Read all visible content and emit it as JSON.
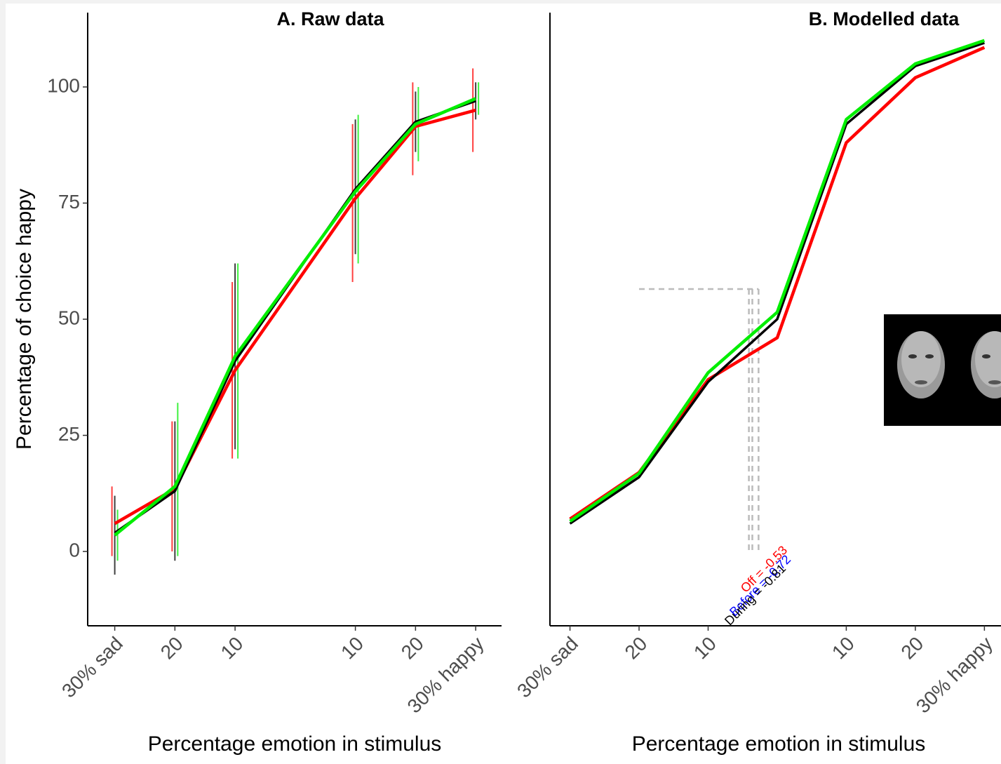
{
  "chart_data": [
    {
      "type": "line",
      "title": "A. Raw data",
      "x_label": "Percentage emotion in stimulus",
      "y_label": "Percentage of choice happy",
      "x": [
        -30,
        -20,
        -10,
        10,
        20,
        30
      ],
      "xlim": [
        -34.5,
        34.3
      ],
      "xticks": [
        {
          "value": -30,
          "label": "30% sad"
        },
        {
          "value": -20,
          "label": "20"
        },
        {
          "value": -10,
          "label": "10"
        },
        {
          "value": 10,
          "label": "10"
        },
        {
          "value": 20,
          "label": "20"
        },
        {
          "value": 30,
          "label": "30% happy"
        }
      ],
      "ylim": [
        -16,
        116
      ],
      "yticks": [
        0,
        25,
        50,
        75,
        100
      ],
      "series": [
        {
          "color": "#ff0000",
          "values": [
            6,
            13.5,
            39,
            76,
            91.5,
            95
          ],
          "lower": [
            -1,
            0,
            20,
            58,
            81,
            86
          ],
          "upper": [
            14,
            28,
            58,
            92,
            101,
            104
          ]
        },
        {
          "color": "#000000",
          "values": [
            4,
            13,
            41,
            78,
            92.5,
            97
          ],
          "lower": [
            -5,
            -2,
            22,
            64,
            86,
            93
          ],
          "upper": [
            12,
            28,
            62,
            93,
            99,
            101
          ]
        },
        {
          "color": "#00ee00",
          "values": [
            3.5,
            14,
            42,
            77.5,
            92,
            97.5
          ],
          "lower": [
            -2,
            -1,
            20,
            62,
            84,
            94
          ],
          "upper": [
            9,
            32,
            62,
            94,
            100,
            101
          ]
        }
      ]
    },
    {
      "type": "line",
      "title": "B. Modelled data",
      "x_label": "Percentage emotion in stimulus",
      "x": [
        -30,
        -20,
        -10,
        0,
        10,
        20,
        30
      ],
      "xlim": [
        -32.9,
        32.4
      ],
      "xticks": [
        {
          "value": -30,
          "label": "30% sad"
        },
        {
          "value": -20,
          "label": "20"
        },
        {
          "value": -10,
          "label": "10"
        },
        {
          "value": 10,
          "label": "10"
        },
        {
          "value": 20,
          "label": "20"
        },
        {
          "value": 30,
          "label": "30% happy"
        }
      ],
      "ylim": [
        -16,
        116
      ],
      "series": [
        {
          "color": "#ff0000",
          "values": [
            7,
            17,
            37,
            46,
            88,
            102,
            108.5
          ]
        },
        {
          "color": "#000000",
          "values": [
            6,
            16,
            36.5,
            50,
            92,
            104.5,
            109.5
          ]
        },
        {
          "color": "#00ee00",
          "values": [
            6.5,
            16.8,
            38.5,
            51.5,
            93,
            105,
            110
          ]
        }
      ],
      "reference": {
        "y": 56.5,
        "y_bottom": 0,
        "x_start": -20,
        "x": [
          -4.1,
          -3.6,
          -2.7
        ]
      },
      "annotations": [
        {
          "text": "Off = -0.53",
          "color": "#ff0000"
        },
        {
          "text": "Before = -0.72",
          "color": "#0000ff"
        },
        {
          "text": "During = -0.81",
          "color": "#000000"
        }
      ]
    }
  ]
}
